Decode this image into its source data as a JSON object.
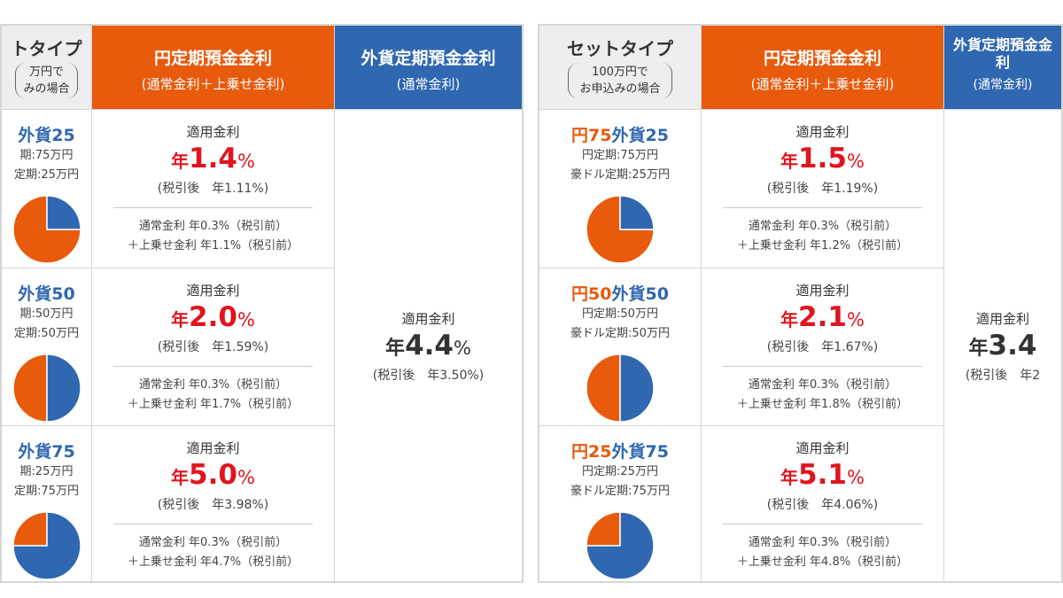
{
  "colors": {
    "yen": "#e85a0c",
    "foreign": "#2f67b1",
    "rate_red": "#e0141e",
    "header_gray": "#eeeeee"
  },
  "tables": [
    {
      "header": {
        "type_title": "トタイプ",
        "type_note_1": "万円で",
        "type_note_2": "みの場合",
        "yen_title": "円定期預金金利",
        "yen_sub": "(通常金利＋上乗せ金利)",
        "fx_title": "外貨定期預金金利",
        "fx_sub": "(通常金利)"
      },
      "rows": [
        {
          "label_yen": "",
          "label_fx": "外貨25",
          "line1": "期:75万円",
          "line2": "定期:25万円",
          "foreign_share": 25,
          "rate_label": "適用金利",
          "rate_prefix": "年",
          "rate": "1.4",
          "rate_unit": "%",
          "after_tax": "(税引後　年1.11%)",
          "detail1": "通常金利 年0.3%（税引前）",
          "detail2": "＋上乗せ金利 年1.1%（税引前）"
        },
        {
          "label_yen": "",
          "label_fx": "外貨50",
          "line1": "期:50万円",
          "line2": "定期:50万円",
          "foreign_share": 50,
          "rate_label": "適用金利",
          "rate_prefix": "年",
          "rate": "2.0",
          "rate_unit": "%",
          "after_tax": "(税引後　年1.59%)",
          "detail1": "通常金利 年0.3%（税引前）",
          "detail2": "＋上乗せ金利 年1.7%（税引前）"
        },
        {
          "label_yen": "",
          "label_fx": "外貨75",
          "line1": "期:25万円",
          "line2": "定期:75万円",
          "foreign_share": 75,
          "rate_label": "適用金利",
          "rate_prefix": "年",
          "rate": "5.0",
          "rate_unit": "%",
          "after_tax": "(税引後　年3.98%)",
          "detail1": "通常金利 年0.3%（税引前）",
          "detail2": "＋上乗せ金利 年4.7%（税引前）"
        }
      ],
      "fx": {
        "rate_label": "適用金利",
        "rate_prefix": "年",
        "rate": "4.4",
        "rate_unit": "%",
        "after_tax": "(税引後　年3.50%)"
      }
    },
    {
      "header": {
        "type_title": "セットタイプ",
        "type_note_1": "100万円で",
        "type_note_2": "お申込みの場合",
        "yen_title": "円定期預金金利",
        "yen_sub": "(通常金利＋上乗せ金利)",
        "fx_title": "外貨定期預金金利",
        "fx_sub": "(通常金利)"
      },
      "rows": [
        {
          "label_yen": "円75",
          "label_fx": "外貨25",
          "line1": "円定期:75万円",
          "line2": "豪ドル定期:25万円",
          "foreign_share": 25,
          "rate_label": "適用金利",
          "rate_prefix": "年",
          "rate": "1.5",
          "rate_unit": "%",
          "after_tax": "(税引後　年1.19%)",
          "detail1": "通常金利 年0.3%（税引前）",
          "detail2": "＋上乗せ金利 年1.2%（税引前）"
        },
        {
          "label_yen": "円50",
          "label_fx": "外貨50",
          "line1": "円定期:50万円",
          "line2": "豪ドル定期:50万円",
          "foreign_share": 50,
          "rate_label": "適用金利",
          "rate_prefix": "年",
          "rate": "2.1",
          "rate_unit": "%",
          "after_tax": "(税引後　年1.67%)",
          "detail1": "通常金利 年0.3%（税引前）",
          "detail2": "＋上乗せ金利 年1.8%（税引前）"
        },
        {
          "label_yen": "円25",
          "label_fx": "外貨75",
          "line1": "円定期:25万円",
          "line2": "豪ドル定期:75万円",
          "foreign_share": 75,
          "rate_label": "適用金利",
          "rate_prefix": "年",
          "rate": "5.1",
          "rate_unit": "%",
          "after_tax": "(税引後　年4.06%)",
          "detail1": "通常金利 年0.3%（税引前）",
          "detail2": "＋上乗せ金利 年4.8%（税引前）"
        }
      ],
      "fx": {
        "rate_label": "適用金利",
        "rate_prefix": "年",
        "rate": "3.4",
        "rate_unit": "",
        "after_tax": "(税引後　年2"
      }
    }
  ]
}
